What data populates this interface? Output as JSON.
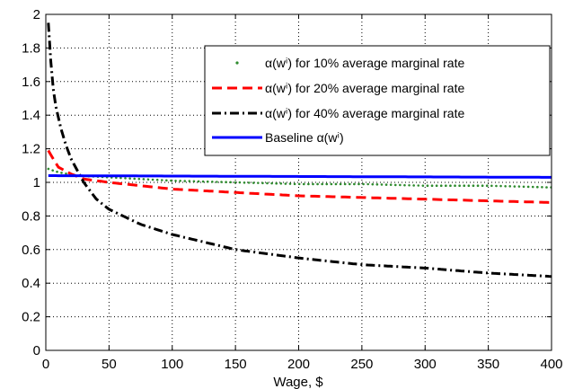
{
  "chart_data": {
    "type": "line",
    "title": "",
    "xlabel": "Wage, $",
    "ylabel": "",
    "xlim": [
      0,
      400
    ],
    "ylim": [
      0,
      2
    ],
    "x_ticks": [
      "0",
      "50",
      "100",
      "150",
      "200",
      "250",
      "300",
      "350",
      "400"
    ],
    "y_ticks": [
      "0",
      "0.2",
      "0.4",
      "0.6",
      "0.8",
      "1",
      "1.2",
      "1.4",
      "1.6",
      "1.8",
      "2"
    ],
    "grid": true,
    "legend_position": "top-right",
    "series": [
      {
        "name": "α(wⁱ) for 10% average marginal rate",
        "color": "#2e8b2e",
        "style": "dotted",
        "x": [
          2,
          10,
          25,
          50,
          100,
          150,
          200,
          250,
          300,
          350,
          400
        ],
        "y": [
          1.08,
          1.06,
          1.04,
          1.03,
          1.01,
          1.0,
          0.99,
          0.99,
          0.98,
          0.98,
          0.97
        ]
      },
      {
        "name": "α(wⁱ) for 20% average marginal rate",
        "color": "#ff0000",
        "style": "dashed",
        "x": [
          2,
          5,
          10,
          20,
          30,
          50,
          75,
          100,
          150,
          200,
          250,
          300,
          350,
          400
        ],
        "y": [
          1.19,
          1.15,
          1.09,
          1.05,
          1.02,
          1.0,
          0.98,
          0.96,
          0.94,
          0.92,
          0.91,
          0.9,
          0.89,
          0.88
        ]
      },
      {
        "name": "α(wⁱ) for 40% average marginal rate",
        "color": "#000000",
        "style": "dashdot",
        "x": [
          2,
          5,
          8,
          12,
          16,
          20,
          25,
          30,
          40,
          50,
          75,
          100,
          150,
          200,
          250,
          300,
          350,
          400
        ],
        "y": [
          1.95,
          1.6,
          1.45,
          1.32,
          1.22,
          1.14,
          1.07,
          1.0,
          0.9,
          0.84,
          0.75,
          0.69,
          0.6,
          0.55,
          0.51,
          0.49,
          0.46,
          0.44
        ]
      },
      {
        "name": "Baseline α(wⁱ)",
        "color": "#0000ff",
        "style": "solid",
        "x": [
          2,
          400
        ],
        "y": [
          1.04,
          1.03
        ]
      }
    ]
  }
}
